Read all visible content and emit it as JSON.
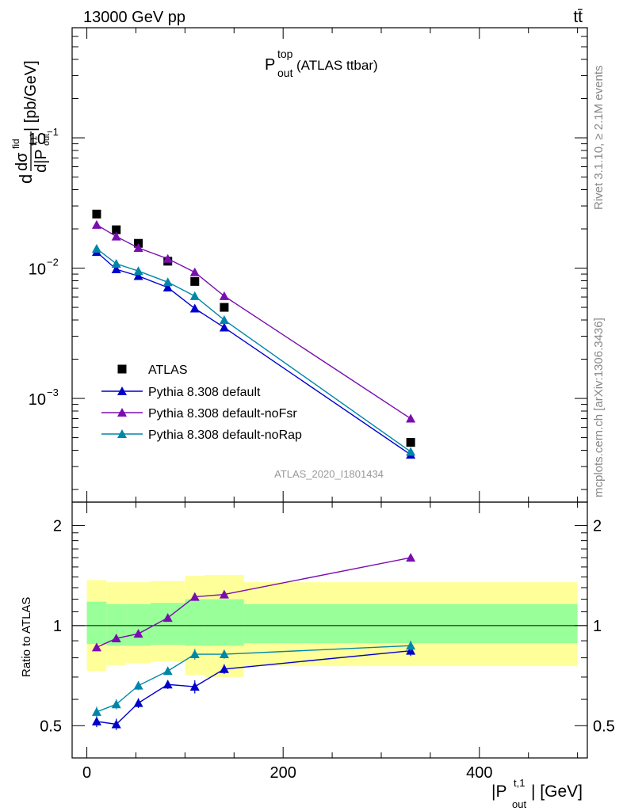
{
  "header": {
    "left": "13000 GeV pp",
    "right": "tt̄"
  },
  "title": {
    "main": "P",
    "sup": "top",
    "sub": "out",
    "rest": " (ATLAS ttbar)"
  },
  "side_labels": {
    "rivet": "Rivet 3.1.10, ≥ 2.1M events",
    "mcplots": "mcplots.cern.ch [arXiv:1306.3436]"
  },
  "watermark": "ATLAS_2020_I1801434",
  "axes": {
    "main_ylabel": "d dσ^{fid} / d|P^{t,1}_{out}| [pb/GeV]",
    "main_ylabel_parts": {
      "top": "dσ",
      "top_sup": "fid",
      "d": "d",
      "bottom": "d|P",
      "bottom_sup": "t,1",
      "bottom_sub": "out",
      "unit": "| [pb/GeV]"
    },
    "ratio_ylabel": "Ratio to ATLAS",
    "xlabel_parts": {
      "pre": "|P",
      "sup": "t,1",
      "sub": "out",
      "post": "| [GeV]"
    },
    "main_yticks": [
      {
        "value": 0.1,
        "base": "10",
        "exp": "−1"
      },
      {
        "value": 0.01,
        "base": "10",
        "exp": "−2"
      },
      {
        "value": 0.001,
        "base": "10",
        "exp": "−3"
      }
    ],
    "ratio_yticks": [
      "0.5",
      "1",
      "2"
    ],
    "xticks": [
      "0",
      "200",
      "400"
    ]
  },
  "chart_data": [
    {
      "type": "scatter",
      "panel": "main",
      "yscale": "log",
      "xlim": [
        -15,
        510
      ],
      "ylim": [
        0.00016,
        0.7
      ],
      "series": [
        {
          "name": "ATLAS",
          "marker": "square",
          "color": "#000000",
          "x": [
            10,
            30,
            52.5,
            82.5,
            110,
            140,
            330
          ],
          "y": [
            0.026,
            0.0197,
            0.0155,
            0.0113,
            0.0079,
            0.005,
            0.00046
          ]
        },
        {
          "name": "Pythia 8.308 default",
          "marker": "triangle",
          "color": "#0000cc",
          "x": [
            10,
            30,
            52.5,
            82.5,
            110,
            140,
            330
          ],
          "y": [
            0.0133,
            0.0098,
            0.0087,
            0.0071,
            0.0049,
            0.0035,
            0.00037
          ]
        },
        {
          "name": "Pythia 8.308 default-noFsr",
          "marker": "triangle",
          "color": "#7a0db0",
          "x": [
            10,
            30,
            52.5,
            82.5,
            110,
            140,
            330
          ],
          "y": [
            0.0215,
            0.0175,
            0.0143,
            0.0118,
            0.0093,
            0.0061,
            0.0007
          ]
        },
        {
          "name": "Pythia 8.308 default-noRap",
          "marker": "triangle",
          "color": "#0087a8",
          "x": [
            10,
            30,
            52.5,
            82.5,
            110,
            140,
            330
          ],
          "y": [
            0.0141,
            0.0108,
            0.0095,
            0.0078,
            0.0061,
            0.004,
            0.00039
          ]
        }
      ]
    },
    {
      "type": "line",
      "panel": "ratio",
      "xlim": [
        -15,
        510
      ],
      "ylim": [
        0.4,
        2.35
      ],
      "reference": 1,
      "bands": {
        "edges": [
          0,
          20,
          40,
          65,
          100,
          120,
          160,
          500
        ],
        "green_lo": [
          0.88,
          0.87,
          0.87,
          0.875,
          0.87,
          0.87,
          0.885
        ],
        "green_hi": [
          1.18,
          1.16,
          1.16,
          1.17,
          1.2,
          1.2,
          1.16
        ],
        "yellow_lo": [
          0.73,
          0.76,
          0.77,
          0.78,
          0.71,
          0.7,
          0.755
        ],
        "yellow_hi": [
          1.37,
          1.35,
          1.35,
          1.36,
          1.41,
          1.42,
          1.35
        ],
        "green_color": "#99ff99",
        "yellow_color": "#ffff99"
      },
      "series": [
        {
          "name": "Pythia 8.308 default",
          "color": "#0000cc",
          "x": [
            10,
            30,
            52.5,
            82.5,
            110,
            140,
            330
          ],
          "y": [
            0.515,
            0.505,
            0.585,
            0.665,
            0.655,
            0.74,
            0.84
          ],
          "err": [
            0.02,
            0.02,
            0.02,
            0.02,
            0.03,
            0.025,
            0.03
          ]
        },
        {
          "name": "Pythia 8.308 default-noFsr",
          "color": "#7a0db0",
          "x": [
            10,
            30,
            52.5,
            82.5,
            110,
            140,
            330
          ],
          "y": [
            0.86,
            0.915,
            0.945,
            1.055,
            1.22,
            1.24,
            1.6
          ],
          "err": [
            0.015,
            0.015,
            0.015,
            0.02,
            0.03,
            0.03,
            0.04
          ]
        },
        {
          "name": "Pythia 8.308 default-noRap",
          "color": "#0087a8",
          "x": [
            10,
            30,
            52.5,
            82.5,
            110,
            140,
            330
          ],
          "y": [
            0.55,
            0.58,
            0.66,
            0.73,
            0.82,
            0.82,
            0.87
          ],
          "err": [
            0.02,
            0.02,
            0.02,
            0.02,
            0.03,
            0.025,
            0.03
          ]
        }
      ]
    }
  ]
}
